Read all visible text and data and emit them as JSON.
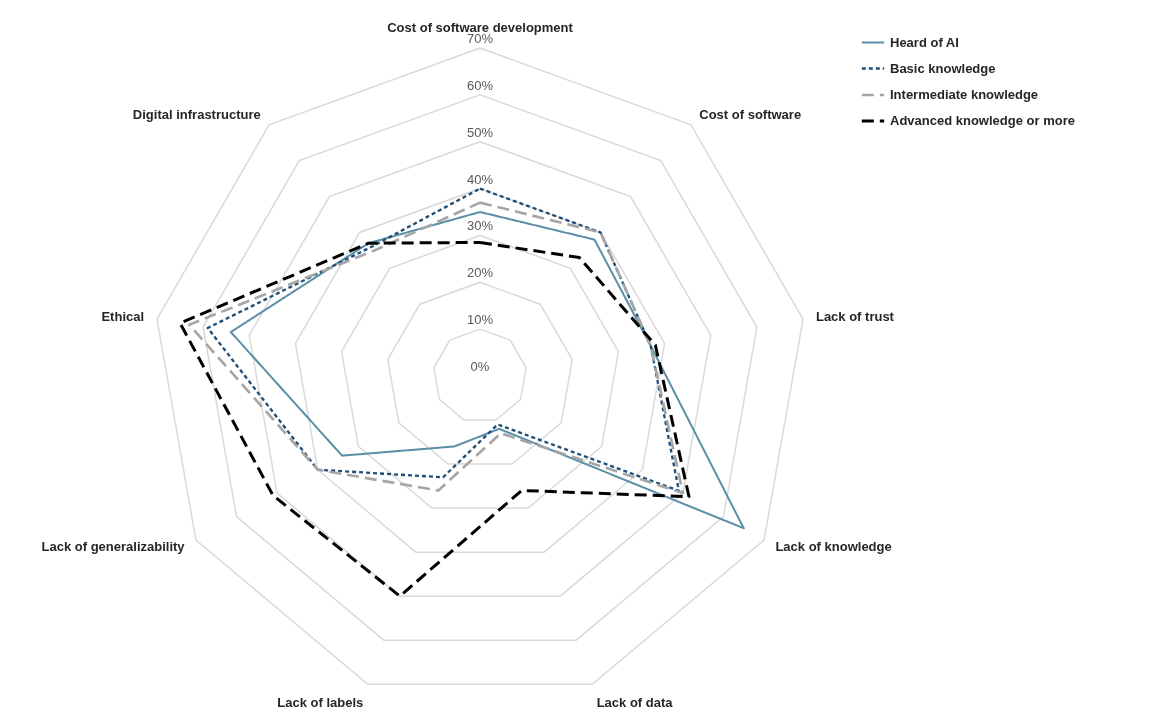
{
  "chart_data": {
    "type": "radar",
    "categories": [
      "Cost of software development",
      "Cost of software",
      "Lack of trust",
      "Lack of knowledge",
      "Lack of data",
      "Lack of labels",
      "Lack of generalizability",
      "Ethical",
      "Digital infrastructure"
    ],
    "ylim": [
      0,
      70
    ],
    "yticks": [
      {
        "value": 0,
        "label": "0%"
      },
      {
        "value": 10,
        "label": "10%"
      },
      {
        "value": 20,
        "label": "20%"
      },
      {
        "value": 30,
        "label": "30%"
      },
      {
        "value": 40,
        "label": "40%"
      },
      {
        "value": 50,
        "label": "50%"
      },
      {
        "value": 60,
        "label": "60%"
      },
      {
        "value": 70,
        "label": "70%"
      }
    ],
    "grid": true,
    "legend": "top right",
    "series": [
      {
        "name": "Heard of AI",
        "color": "#5b8fa8",
        "line_style": "solid",
        "values": [
          35,
          38,
          37,
          65,
          12,
          16,
          34,
          54,
          37
        ]
      },
      {
        "name": "Basic knowledge",
        "color": "#1f4e79",
        "line_style": "dotted",
        "values": [
          40,
          40,
          37,
          49,
          11,
          23,
          40,
          59,
          36
        ]
      },
      {
        "name": "Intermediate knowledge",
        "color": "#a6a6a6",
        "line_style": "dashed",
        "values": [
          37,
          40,
          37,
          50,
          13,
          26,
          40,
          63,
          35
        ]
      },
      {
        "name": "Advanced knowledge or more",
        "color": "#000000",
        "line_style": "dashed",
        "values": [
          28.5,
          33,
          38,
          51.5,
          26,
          50,
          51,
          65,
          37
        ]
      }
    ]
  }
}
